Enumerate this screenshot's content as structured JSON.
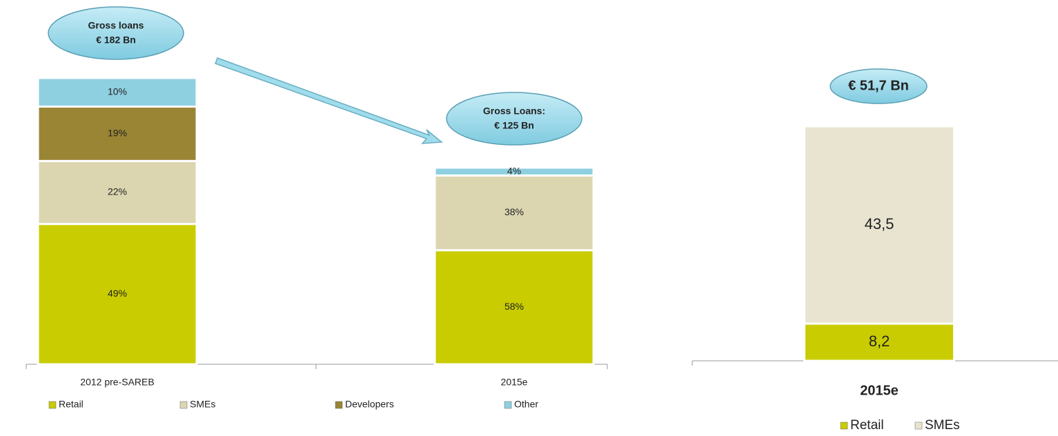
{
  "chart_data": [
    {
      "type": "bar",
      "stacked": true,
      "percent": true,
      "categories": [
        "2012 pre-SAREB",
        "2015e"
      ],
      "series": [
        {
          "name": "Retail",
          "color": "#c8cc00",
          "values": [
            49,
            58
          ],
          "value_labels": [
            "49%",
            "58%"
          ]
        },
        {
          "name": "SMEs",
          "color": "#dcd6b0",
          "values": [
            22,
            38
          ],
          "value_labels": [
            "22%",
            "38%"
          ]
        },
        {
          "name": "Developers",
          "color": "#9a8535",
          "values": [
            19,
            null
          ],
          "value_labels": [
            "19%",
            null
          ]
        },
        {
          "name": "Other",
          "color": "#8fd0e0",
          "values": [
            10,
            4
          ],
          "value_labels": [
            "10%",
            "4%"
          ]
        }
      ],
      "annotations": [
        {
          "title": "Gross loans",
          "value": 182,
          "label": "€ 182 Bn"
        },
        {
          "title": "Gross Loans:",
          "value": 125,
          "label": "€ 125 Bn"
        }
      ]
    },
    {
      "type": "bar",
      "stacked": true,
      "categories": [
        "2015e"
      ],
      "series": [
        {
          "name": "Retail",
          "color": "#c8cc00",
          "values": [
            8.2
          ],
          "value_labels": [
            "8,2"
          ]
        },
        {
          "name": "SMEs",
          "color": "#e8e4d0",
          "values": [
            43.5
          ],
          "value_labels": [
            "43,5"
          ]
        }
      ],
      "annotations": [
        {
          "value": 51.7,
          "label": "€ 51,7 Bn"
        }
      ]
    }
  ]
}
